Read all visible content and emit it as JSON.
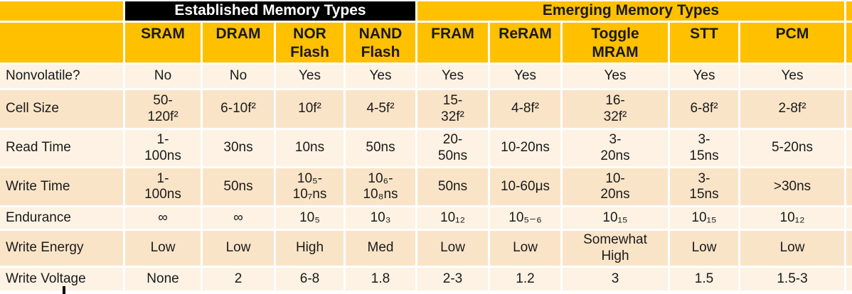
{
  "chart_data": {
    "type": "table",
    "group_headers": [
      {
        "label": "Established Memory Types",
        "span": 4,
        "bg": "#000000",
        "fg": "#FFFFFF"
      },
      {
        "label": "Emerging Memory Types",
        "span": 5,
        "bg": "#FFC000",
        "fg": "#000000"
      }
    ],
    "columns": [
      "SRAM",
      "DRAM",
      "NOR\nFlash",
      "NAND\nFlash",
      "FRAM",
      "ReRAM",
      "Toggle\nMRAM",
      "STT",
      "PCM"
    ],
    "rows": [
      {
        "label": "Nonvolatile?",
        "values": [
          "No",
          "No",
          "Yes",
          "Yes",
          "Yes",
          "Yes",
          "Yes",
          "Yes",
          "Yes"
        ]
      },
      {
        "label": "Cell Size",
        "values": [
          "50-\n120f²",
          "6-10f²",
          "10f²",
          "4-5f²",
          "15-\n32f²",
          "4-8f²",
          "16-\n32f²",
          "6-8f²",
          "2-8f²"
        ]
      },
      {
        "label": "Read Time",
        "values": [
          "1-\n100ns",
          "30ns",
          "10ns",
          "50ns",
          "20-\n50ns",
          "10-20ns",
          "3-\n20ns",
          "3-\n15ns",
          "5-20ns"
        ]
      },
      {
        "label": "Write Time",
        "values": [
          "1-\n100ns",
          "50ns",
          "10₅-\n10₇ns",
          "10₆-\n10₈ns",
          "50ns",
          "10-60μs",
          "10-\n20ns",
          "3-\n15ns",
          ">30ns"
        ]
      },
      {
        "label": "Endurance",
        "values": [
          "∞",
          "∞",
          "10₅",
          "10₃",
          "10₁₂",
          "10₅₋₆",
          "10₁₅",
          "10₁₅",
          "10₁₂"
        ]
      },
      {
        "label": "Write Energy",
        "values": [
          "Low",
          "Low",
          "High",
          "Med",
          "Low",
          "Low",
          "Somewhat\nHigh",
          "Low",
          "Low"
        ]
      },
      {
        "label": "Write Voltage",
        "values": [
          "None",
          "2",
          "6-8",
          "1.8",
          "2-3",
          "1.2",
          "3",
          "1.5",
          "1.5-3"
        ]
      }
    ],
    "colors": {
      "header_bg": "#FFC000",
      "established_bg": "#000000",
      "established_fg": "#FFFFFF",
      "band_light": "#FDF2E3",
      "band_dark": "#FAE4C8",
      "gridline": "#FFFFFF",
      "text": "#1A1A1A"
    },
    "layout": {
      "grid": "white 3px separators",
      "banding": "alternating light/dark rows"
    }
  }
}
